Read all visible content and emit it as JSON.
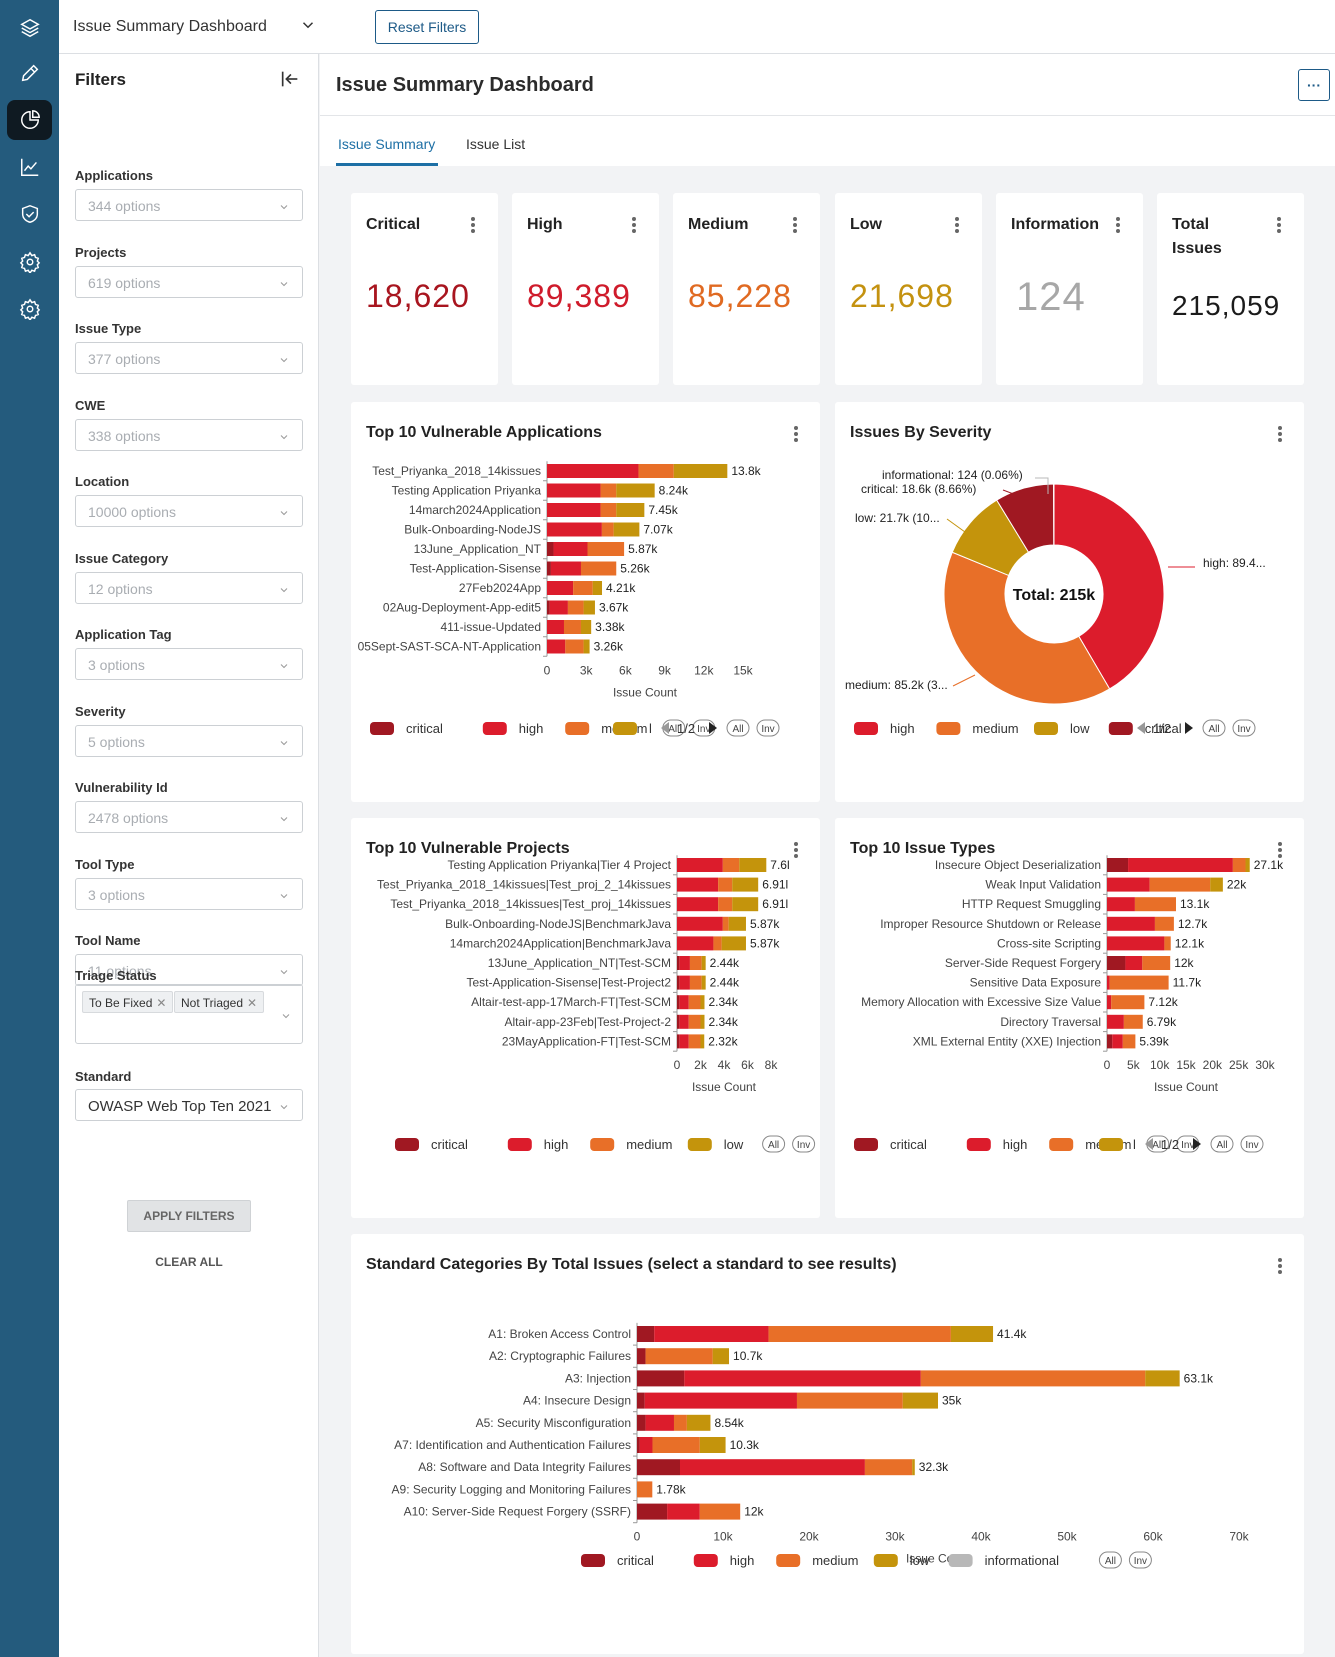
{
  "topbar": {
    "dashboard_select": "Issue Summary Dashboard",
    "reset_label": "Reset Filters"
  },
  "filters": {
    "title": "Filters",
    "items": [
      {
        "label": "Applications",
        "value": "344 options"
      },
      {
        "label": "Projects",
        "value": "619 options"
      },
      {
        "label": "Issue Type",
        "value": "377 options"
      },
      {
        "label": "CWE",
        "value": "338 options"
      },
      {
        "label": "Location",
        "value": "10000 options"
      },
      {
        "label": "Issue Category",
        "value": "12 options"
      },
      {
        "label": "Application Tag",
        "value": "3 options"
      },
      {
        "label": "Severity",
        "value": "5 options"
      },
      {
        "label": "Vulnerability Id",
        "value": "2478 options"
      },
      {
        "label": "Tool Type",
        "value": "3 options"
      },
      {
        "label": "Tool Name",
        "value": "11 options"
      }
    ],
    "triage": {
      "label": "Triage Status",
      "tags": [
        "To Be Fixed",
        "Not Triaged"
      ]
    },
    "standard": {
      "label": "Standard",
      "value": "OWASP Web Top Ten 2021"
    },
    "apply_label": "APPLY FILTERS",
    "clear_label": "CLEAR ALL"
  },
  "main": {
    "title": "Issue Summary Dashboard",
    "more_label": "···",
    "tabs": [
      "Issue Summary",
      "Issue List"
    ]
  },
  "kpis": [
    {
      "label": "Critical",
      "value": "18,620",
      "color": "#a8151f"
    },
    {
      "label": "High",
      "value": "89,389",
      "color": "#cf1b2b"
    },
    {
      "label": "Medium",
      "value": "85,228",
      "color": "#e06a22"
    },
    {
      "label": "Low",
      "value": "21,698",
      "color": "#c49210"
    },
    {
      "label": "Information",
      "value": "124",
      "color": "#a7a7a7"
    },
    {
      "label": "Total Issues",
      "value": "215,059",
      "color": "#1b1b1b"
    }
  ],
  "legend": {
    "all": "All",
    "inv": "Inv",
    "page": "1/2",
    "truncated_low": "l"
  },
  "colors": {
    "critical": "#a01822",
    "high": "#dc1c2c",
    "medium": "#e86f28",
    "low": "#c4940c",
    "informational": "#b8b8b8"
  },
  "chart_data": [
    {
      "type": "bar",
      "orientation": "horizontal",
      "stacked": true,
      "title": "Top 10 Vulnerable Applications",
      "xlabel": "Issue Count",
      "xlim": [
        0,
        15000
      ],
      "xticks": [
        "0",
        "3k",
        "6k",
        "9k",
        "12k",
        "15k"
      ],
      "categories": [
        "Test_Priyanka_2018_14kissues",
        "Testing Application Priyanka",
        "14march2024Application",
        "Bulk-Onboarding-NodeJS",
        "13June_Application_NT",
        "Test-Application-Sisense",
        "27Feb2024App",
        "02Aug-Deployment-App-edit5",
        "411-issue-Updated",
        "05Sept-SAST-SCA-NT-Application"
      ],
      "totals": [
        "13.8k",
        "8.24k",
        "7.45k",
        "7.07k",
        "5.87k",
        "5.26k",
        "4.21k",
        "3.67k",
        "3.38k",
        "3.26k"
      ],
      "series": [
        {
          "name": "critical",
          "values": [
            0,
            0,
            0,
            0,
            500,
            300,
            0,
            200,
            0,
            0
          ]
        },
        {
          "name": "high",
          "values": [
            7000,
            4100,
            4100,
            4200,
            2600,
            2300,
            2000,
            1400,
            1300,
            1400
          ]
        },
        {
          "name": "medium",
          "values": [
            2700,
            1200,
            1200,
            900,
            2800,
            2700,
            1500,
            1200,
            1300,
            1400
          ]
        },
        {
          "name": "low",
          "values": [
            4100,
            2940,
            2150,
            1970,
            0,
            0,
            710,
            870,
            780,
            460
          ]
        }
      ],
      "legend_items": [
        "critical",
        "high",
        "medium",
        "l"
      ]
    },
    {
      "type": "pie",
      "donut": true,
      "title": "Issues By Severity",
      "center_label": "Total: 215k",
      "slices": [
        {
          "name": "high",
          "value": 89389,
          "label": "high: 89.4..."
        },
        {
          "name": "medium",
          "value": 85228,
          "label": "medium: 85.2k (3..."
        },
        {
          "name": "low",
          "value": 21698,
          "label": "low: 21.7k (10..."
        },
        {
          "name": "critical",
          "value": 18620,
          "label": "critical: 18.6k (8.66%)"
        },
        {
          "name": "informational",
          "value": 124,
          "label": "informational: 124 (0.06%)"
        }
      ],
      "legend_items": [
        "high",
        "medium",
        "low",
        "critical"
      ]
    },
    {
      "type": "bar",
      "orientation": "horizontal",
      "stacked": true,
      "title": "Top 10 Vulnerable Projects",
      "xlabel": "Issue Count",
      "xlim": [
        0,
        8000
      ],
      "xticks": [
        "0",
        "2k",
        "4k",
        "6k",
        "8k"
      ],
      "categories": [
        "Testing Application Priyanka|Tier 4 Project",
        "Test_Priyanka_2018_14kissues|Test_proj_2_14kissues",
        "Test_Priyanka_2018_14kissues|Test_proj_14kissues",
        "Bulk-Onboarding-NodeJS|BenchmarkJava",
        "14march2024Application|BenchmarkJava",
        "13June_Application_NT|Test-SCM",
        "Test-Application-Sisense|Test-Project2",
        "Altair-test-app-17March-FT|Test-SCM",
        "Altair-app-23Feb|Test-Project-2",
        "23MayApplication-FT|Test-SCM"
      ],
      "totals": [
        "7.6l",
        "6.91l",
        "6.91l",
        "5.87k",
        "5.87k",
        "2.44k",
        "2.44k",
        "2.34k",
        "2.34k",
        "2.32k"
      ],
      "series": [
        {
          "name": "critical",
          "values": [
            0,
            0,
            0,
            0,
            0,
            200,
            200,
            200,
            200,
            200
          ]
        },
        {
          "name": "high",
          "values": [
            3900,
            3500,
            3500,
            3900,
            3100,
            900,
            900,
            800,
            800,
            800
          ]
        },
        {
          "name": "medium",
          "values": [
            1400,
            1200,
            1200,
            500,
            700,
            1000,
            1000,
            1000,
            1000,
            1000
          ]
        },
        {
          "name": "low",
          "values": [
            2300,
            2210,
            2210,
            1470,
            2070,
            340,
            340,
            340,
            340,
            320
          ]
        }
      ],
      "legend_items": [
        "critical",
        "high",
        "medium",
        "low"
      ]
    },
    {
      "type": "bar",
      "orientation": "horizontal",
      "stacked": true,
      "title": "Top 10 Issue Types",
      "xlabel": "Issue Count",
      "xlim": [
        0,
        30000
      ],
      "xticks": [
        "0",
        "5k",
        "10k",
        "15k",
        "20k",
        "25k",
        "30k"
      ],
      "categories": [
        "Insecure Object Deserialization",
        "Weak Input Validation",
        "HTTP Request Smuggling",
        "Improper Resource Shutdown or Release",
        "Cross-site Scripting",
        "Server-Side Request Forgery",
        "Sensitive Data Exposure",
        "Memory Allocation with Excessive Size Value",
        "Directory Traversal",
        "XML External Entity (XXE) Injection"
      ],
      "totals": [
        "27.1k",
        "22k",
        "13.1k",
        "12.7k",
        "12.1k",
        "12k",
        "11.7k",
        "7.12k",
        "6.79k",
        "5.39k"
      ],
      "series": [
        {
          "name": "critical",
          "values": [
            4000,
            0,
            0,
            0,
            0,
            3500,
            0,
            0,
            0,
            1000
          ]
        },
        {
          "name": "high",
          "values": [
            19900,
            8100,
            5300,
            9100,
            10900,
            3200,
            500,
            800,
            3200,
            2000
          ]
        },
        {
          "name": "medium",
          "values": [
            2400,
            11500,
            7800,
            3600,
            1200,
            5300,
            11200,
            6300,
            3590,
            2390
          ]
        },
        {
          "name": "low",
          "values": [
            800,
            2400,
            0,
            0,
            0,
            0,
            0,
            0,
            0,
            0
          ]
        }
      ],
      "legend_items": [
        "critical",
        "high",
        "medium",
        "l"
      ]
    },
    {
      "type": "bar",
      "orientation": "horizontal",
      "stacked": true,
      "title": "Standard Categories By Total Issues (select a standard to see results)",
      "xlabel": "Issue Count",
      "xlim": [
        0,
        70000
      ],
      "xticks": [
        "0",
        "10k",
        "20k",
        "30k",
        "40k",
        "50k",
        "60k",
        "70k"
      ],
      "categories": [
        "A1: Broken Access Control",
        "A2: Cryptographic Failures",
        "A3: Injection",
        "A4: Insecure Design",
        "A5: Security Misconfiguration",
        "A7: Identification and Authentication Failures",
        "A8: Software and Data Integrity Failures",
        "A9: Security Logging and Monitoring Failures",
        "A10: Server-Side Request Forgery (SSRF)"
      ],
      "totals": [
        "41.4k",
        "10.7k",
        "63.1k",
        "35k",
        "8.54k",
        "10.3k",
        "32.3k",
        "1.78k",
        "12k"
      ],
      "series": [
        {
          "name": "critical",
          "values": [
            2000,
            1000,
            5500,
            900,
            1000,
            300,
            5000,
            0,
            3500
          ]
        },
        {
          "name": "high",
          "values": [
            13300,
            0,
            27500,
            17700,
            3300,
            1500,
            21500,
            0,
            3800
          ]
        },
        {
          "name": "medium",
          "values": [
            21200,
            7800,
            26100,
            12300,
            1500,
            5500,
            5500,
            1780,
            4700
          ]
        },
        {
          "name": "low",
          "values": [
            4900,
            1900,
            4000,
            4100,
            2740,
            3000,
            300,
            0,
            0
          ]
        },
        {
          "name": "informational",
          "values": [
            0,
            0,
            0,
            0,
            0,
            0,
            0,
            0,
            0
          ]
        }
      ],
      "legend_items": [
        "critical",
        "high",
        "medium",
        "low",
        "informational"
      ]
    }
  ]
}
